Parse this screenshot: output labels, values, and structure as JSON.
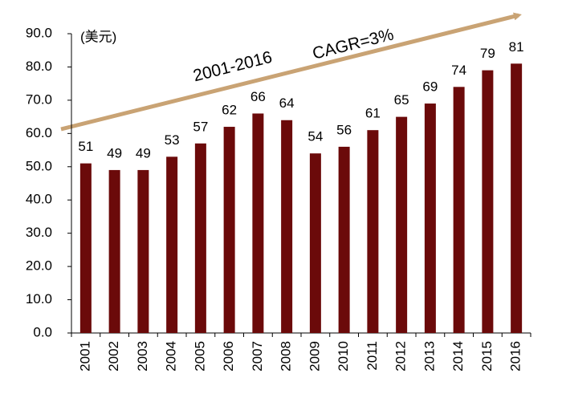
{
  "chart_data": {
    "type": "bar",
    "unit_label": "(美元)",
    "annotations": [
      "2001-2016",
      "CAGR=3%"
    ],
    "categories": [
      "2001",
      "2002",
      "2003",
      "2004",
      "2005",
      "2006",
      "2007",
      "2008",
      "2009",
      "2010",
      "2011",
      "2012",
      "2013",
      "2014",
      "2015",
      "2016"
    ],
    "values": [
      51,
      49,
      49,
      53,
      57,
      62,
      66,
      64,
      54,
      56,
      61,
      65,
      69,
      74,
      79,
      81
    ],
    "color": "#6b0a0a",
    "ylim": [
      0,
      90
    ],
    "yticks": [
      {
        "value": 0,
        "label": "0.0"
      },
      {
        "value": 10,
        "label": "10.0"
      },
      {
        "value": 20,
        "label": "20.0"
      },
      {
        "value": 30,
        "label": "30.0"
      },
      {
        "value": 40,
        "label": "40.0"
      },
      {
        "value": 50,
        "label": "50.0"
      },
      {
        "value": 60,
        "label": "60.0"
      },
      {
        "value": 70,
        "label": "70.0"
      },
      {
        "value": 80,
        "label": "80.0"
      },
      {
        "value": 90,
        "label": "90.0"
      }
    ]
  }
}
